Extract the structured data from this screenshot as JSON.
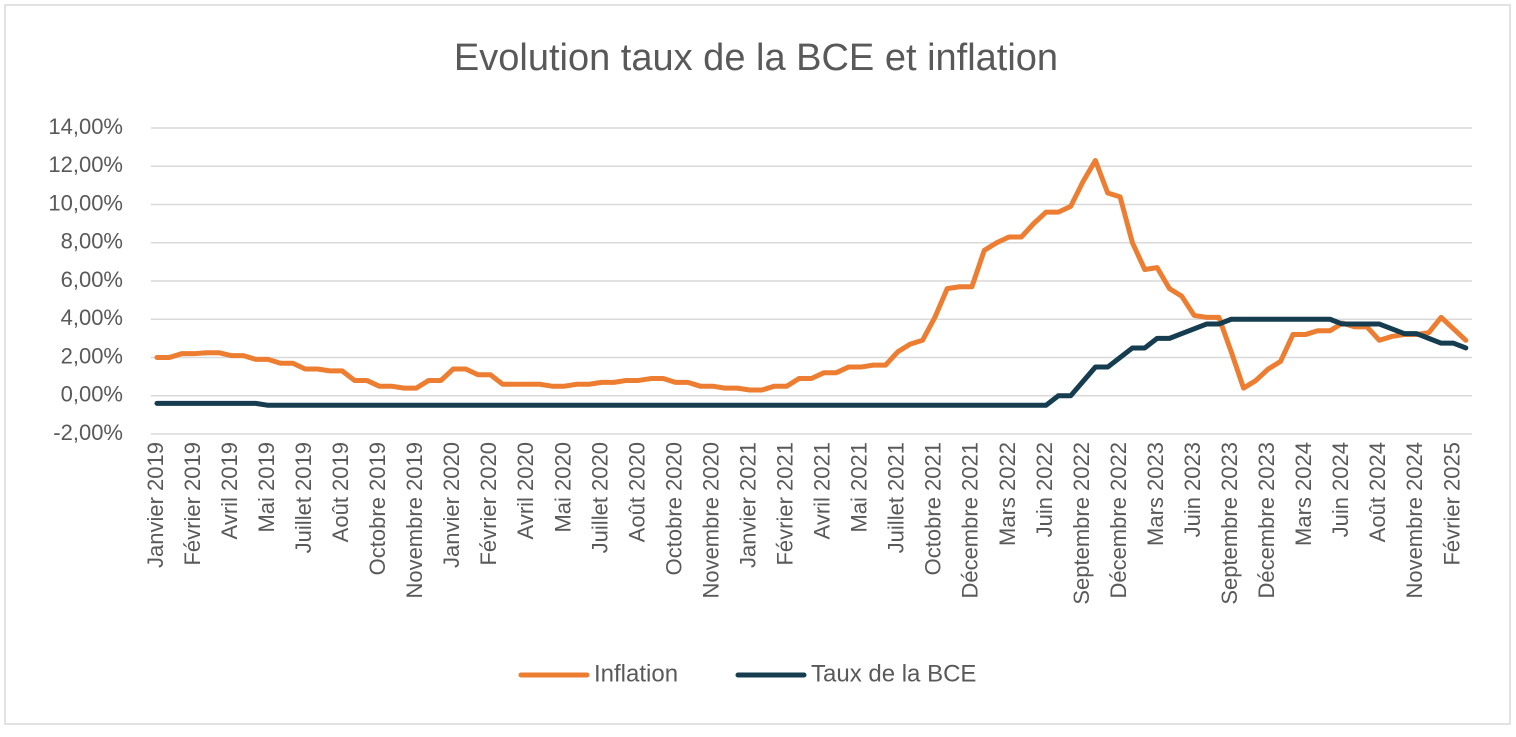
{
  "chart_data": {
    "type": "line",
    "title": "Evolution taux de la BCE et inflation",
    "categories": [
      "Janvier 2019",
      null,
      null,
      "Février 2019",
      null,
      null,
      "Avril 2019",
      null,
      null,
      "Mai 2019",
      null,
      null,
      "Juillet 2019",
      null,
      null,
      "Août 2019",
      null,
      null,
      "Octobre 2019",
      null,
      null,
      "Novembre 2019",
      null,
      null,
      "Janvier 2020",
      null,
      null,
      "Février 2020",
      null,
      null,
      "Avril 2020",
      null,
      null,
      "Mai 2020",
      null,
      null,
      "Juillet 2020",
      null,
      null,
      "Août 2020",
      null,
      null,
      "Octobre 2020",
      null,
      null,
      "Novembre 2020",
      null,
      null,
      "Janvier 2021",
      null,
      null,
      "Février 2021",
      null,
      null,
      "Avril 2021",
      null,
      null,
      "Mai 2021",
      null,
      null,
      "Juillet 2021",
      null,
      null,
      "Octobre 2021",
      null,
      null,
      "Décembre 2021",
      null,
      null,
      "Mars 2022",
      null,
      null,
      "Juin 2022",
      null,
      null,
      "Septembre 2022",
      null,
      null,
      "Décembre 2022",
      null,
      null,
      "Mars 2023",
      null,
      null,
      "Juin 2023",
      null,
      null,
      "Septembre 2023",
      null,
      null,
      "Décembre 2023",
      null,
      null,
      "Mars 2024",
      null,
      null,
      "Juin 2024",
      null,
      null,
      "Août 2024",
      null,
      null,
      "Novembre 2024",
      null,
      null,
      "Février 2025",
      null
    ],
    "series": [
      {
        "name": "Inflation",
        "color": "#ED7D31",
        "values": [
          2.0,
          2.0,
          2.2,
          2.2,
          2.25,
          2.25,
          2.1,
          2.1,
          1.9,
          1.9,
          1.7,
          1.7,
          1.4,
          1.4,
          1.3,
          1.3,
          0.8,
          0.8,
          0.5,
          0.5,
          0.4,
          0.4,
          0.8,
          0.8,
          1.4,
          1.4,
          1.1,
          1.1,
          0.6,
          0.6,
          0.6,
          0.6,
          0.5,
          0.5,
          0.6,
          0.6,
          0.7,
          0.7,
          0.8,
          0.8,
          0.9,
          0.9,
          0.7,
          0.7,
          0.5,
          0.5,
          0.4,
          0.4,
          0.3,
          0.3,
          0.5,
          0.5,
          0.9,
          0.9,
          1.2,
          1.2,
          1.5,
          1.5,
          1.6,
          1.6,
          2.3,
          2.7,
          2.9,
          4.1,
          5.6,
          5.7,
          5.7,
          7.6,
          8.0,
          8.3,
          8.3,
          9.0,
          9.6,
          9.6,
          9.9,
          11.2,
          12.3,
          10.6,
          10.4,
          8.0,
          6.6,
          6.7,
          5.6,
          5.2,
          4.2,
          4.1,
          4.1,
          2.3,
          0.4,
          0.8,
          1.4,
          1.8,
          3.2,
          3.2,
          3.4,
          3.4,
          3.8,
          3.6,
          3.6,
          2.9,
          3.1,
          3.2,
          3.2,
          3.3,
          4.1,
          3.5,
          2.9
        ]
      },
      {
        "name": "Taux de la BCE",
        "color": "#153D4F",
        "values": [
          -0.4,
          -0.4,
          -0.4,
          -0.4,
          -0.4,
          -0.4,
          -0.4,
          -0.4,
          -0.4,
          -0.5,
          -0.5,
          -0.5,
          -0.5,
          -0.5,
          -0.5,
          -0.5,
          -0.5,
          -0.5,
          -0.5,
          -0.5,
          -0.5,
          -0.5,
          -0.5,
          -0.5,
          -0.5,
          -0.5,
          -0.5,
          -0.5,
          -0.5,
          -0.5,
          -0.5,
          -0.5,
          -0.5,
          -0.5,
          -0.5,
          -0.5,
          -0.5,
          -0.5,
          -0.5,
          -0.5,
          -0.5,
          -0.5,
          -0.5,
          -0.5,
          -0.5,
          -0.5,
          -0.5,
          -0.5,
          -0.5,
          -0.5,
          -0.5,
          -0.5,
          -0.5,
          -0.5,
          -0.5,
          -0.5,
          -0.5,
          -0.5,
          -0.5,
          -0.5,
          -0.5,
          -0.5,
          -0.5,
          -0.5,
          -0.5,
          -0.5,
          -0.5,
          -0.5,
          -0.5,
          -0.5,
          -0.5,
          -0.5,
          -0.5,
          0,
          0,
          0.75,
          1.5,
          1.5,
          2.0,
          2.5,
          2.5,
          3.0,
          3.0,
          3.25,
          3.5,
          3.75,
          3.75,
          4.0,
          4.0,
          4.0,
          4.0,
          4.0,
          4.0,
          4.0,
          4.0,
          4.0,
          3.75,
          3.75,
          3.75,
          3.75,
          3.5,
          3.25,
          3.25,
          3.0,
          2.75,
          2.75,
          2.5
        ]
      }
    ],
    "ylim": [
      -2,
      14
    ],
    "yticks": [
      {
        "value": -2,
        "label": "-2,00%"
      },
      {
        "value": 0,
        "label": "0,00%"
      },
      {
        "value": 2,
        "label": "2,00%"
      },
      {
        "value": 4,
        "label": "4,00%"
      },
      {
        "value": 6,
        "label": "6,00%"
      },
      {
        "value": 8,
        "label": "8,00%"
      },
      {
        "value": 10,
        "label": "10,00%"
      },
      {
        "value": 12,
        "label": "12,00%"
      },
      {
        "value": 14,
        "label": "14,00%"
      }
    ],
    "grid": true,
    "legend": "bottom"
  }
}
